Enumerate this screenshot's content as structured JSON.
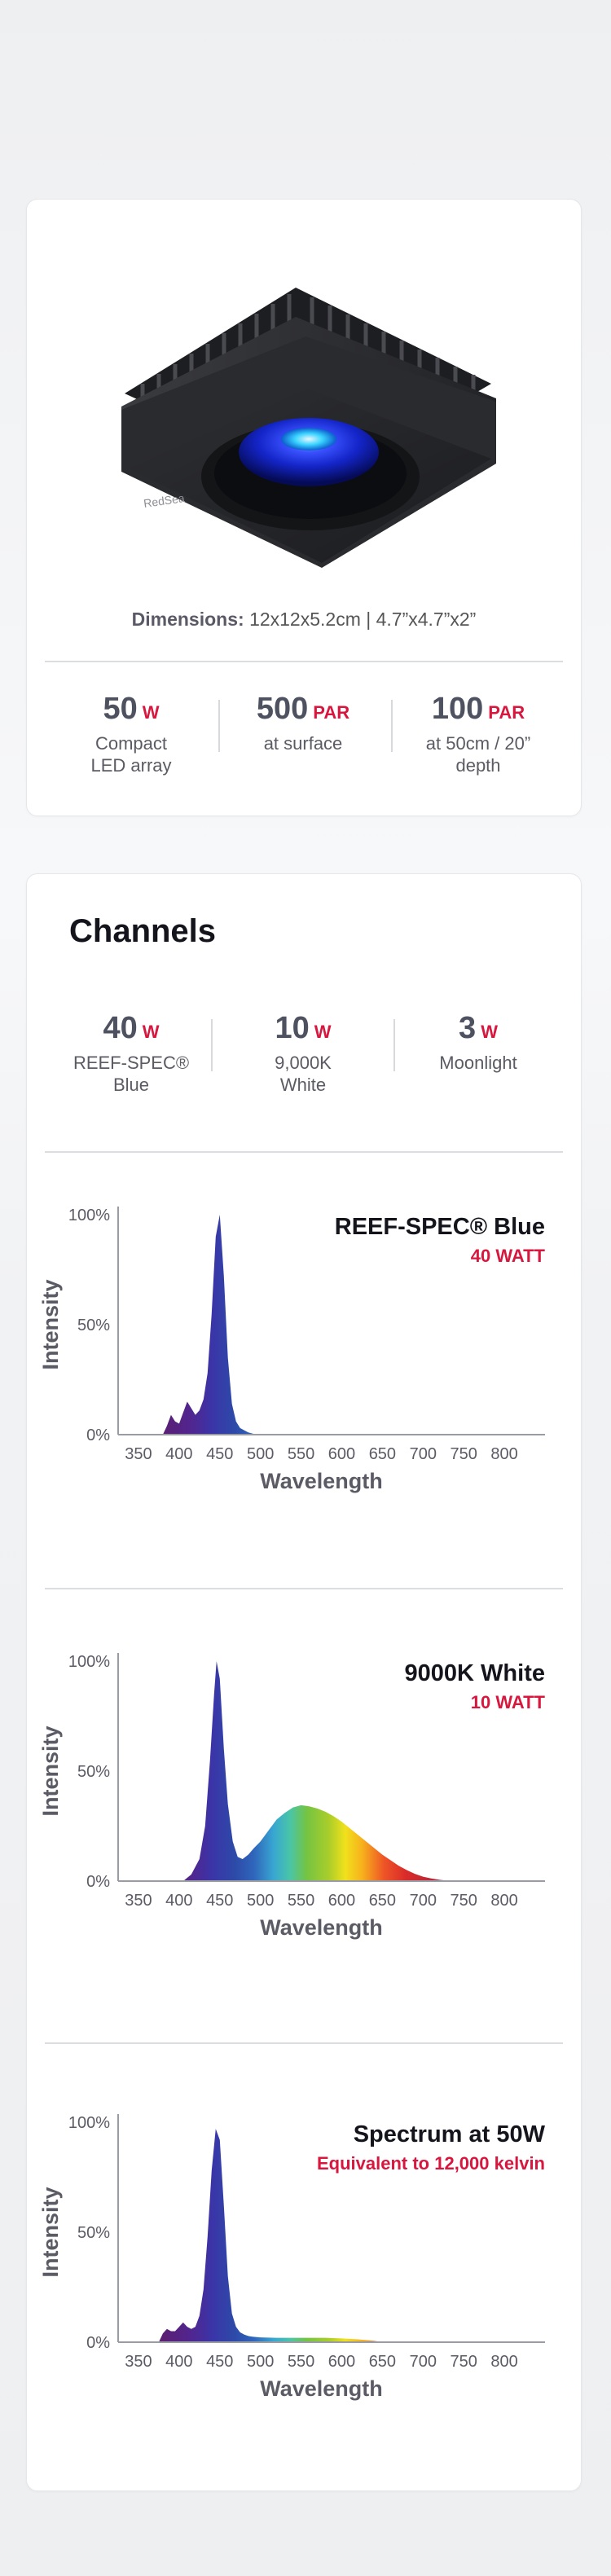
{
  "product": {
    "dimensions_label": "Dimensions:",
    "dimensions_value": "12x12x5.2cm |  4.7”x4.7”x2”",
    "logo_text": "RedSea",
    "stats": [
      {
        "value": "50",
        "unit": "W",
        "label_lines": [
          "Compact",
          "LED array"
        ]
      },
      {
        "value": "500",
        "unit": "PAR",
        "label_lines": [
          "at surface"
        ]
      },
      {
        "value": "100",
        "unit": "PAR",
        "label_lines": [
          "at 50cm / 20”",
          "depth"
        ]
      }
    ]
  },
  "channels": {
    "title": "Channels",
    "items": [
      {
        "value": "40",
        "unit": "W",
        "label_lines": [
          "REEF-SPEC®",
          "Blue"
        ]
      },
      {
        "value": "10",
        "unit": "W",
        "label_lines": [
          "9,000K",
          "White"
        ]
      },
      {
        "value": "3",
        "unit": "W",
        "label_lines": [
          "Moonlight"
        ]
      }
    ]
  },
  "colors": {
    "accent": "#d8173f",
    "title": "#14141c",
    "axis_text": "#5b5b66"
  },
  "chart_data": [
    {
      "type": "area",
      "title": "REEF-SPEC® Blue",
      "subtitle": "40 WATT",
      "xlabel": "Wavelength",
      "ylabel": "Intensity",
      "x_ticks": [
        350,
        400,
        450,
        500,
        550,
        600,
        650,
        700,
        750,
        800
      ],
      "y_ticks": [
        "0%",
        "50%",
        "100%"
      ],
      "xlim": [
        325,
        850
      ],
      "ylim": [
        0,
        100
      ],
      "gradient": "visible-spectrum",
      "x": [
        380,
        385,
        390,
        395,
        400,
        405,
        410,
        415,
        420,
        425,
        430,
        435,
        440,
        445,
        450,
        455,
        460,
        465,
        470,
        475,
        480,
        485,
        490,
        495
      ],
      "y": [
        0,
        4,
        9,
        6,
        5,
        10,
        15,
        12,
        9,
        11,
        16,
        28,
        55,
        90,
        100,
        72,
        35,
        14,
        6,
        3,
        2,
        1,
        0.5,
        0
      ]
    },
    {
      "type": "area",
      "title": "9000K White",
      "subtitle": "10 WATT",
      "xlabel": "Wavelength",
      "ylabel": "Intensity",
      "x_ticks": [
        350,
        400,
        450,
        500,
        550,
        600,
        650,
        700,
        750,
        800
      ],
      "y_ticks": [
        "0%",
        "50%",
        "100%"
      ],
      "xlim": [
        325,
        850
      ],
      "ylim": [
        0,
        100
      ],
      "gradient": "visible-spectrum",
      "x": [
        405,
        415,
        425,
        432,
        438,
        443,
        446,
        450,
        455,
        460,
        466,
        472,
        478,
        485,
        492,
        500,
        510,
        520,
        530,
        540,
        550,
        560,
        570,
        580,
        590,
        600,
        610,
        620,
        630,
        640,
        650,
        660,
        670,
        680,
        690,
        700,
        710,
        720,
        730,
        740
      ],
      "y": [
        0,
        3,
        10,
        25,
        55,
        85,
        100,
        92,
        60,
        35,
        18,
        11,
        10,
        12,
        15,
        18,
        23,
        28,
        31,
        33.5,
        34.5,
        34,
        33,
        31.5,
        29.5,
        27,
        24,
        21,
        18,
        15,
        12,
        9.5,
        7,
        5,
        3.3,
        2,
        1.2,
        0.6,
        0.2,
        0
      ]
    },
    {
      "type": "area",
      "title": "Spectrum at 50W",
      "subtitle": "Equivalent to 12,000 kelvin",
      "xlabel": "Wavelength",
      "ylabel": "Intensity",
      "x_ticks": [
        350,
        400,
        450,
        500,
        550,
        600,
        650,
        700,
        750,
        800
      ],
      "y_ticks": [
        "0%",
        "50%",
        "100%"
      ],
      "xlim": [
        325,
        850
      ],
      "ylim": [
        0,
        100
      ],
      "gradient": "visible-spectrum",
      "x": [
        375,
        380,
        385,
        390,
        395,
        400,
        405,
        410,
        415,
        420,
        425,
        430,
        435,
        440,
        445,
        450,
        455,
        460,
        465,
        470,
        475,
        480,
        485,
        490,
        500,
        520,
        540,
        560,
        580,
        600,
        620,
        640,
        650
      ],
      "y": [
        0,
        4,
        6,
        5,
        5,
        7,
        9,
        7,
        6,
        7,
        12,
        24,
        48,
        78,
        97,
        92,
        62,
        30,
        13,
        7,
        4.5,
        3.5,
        2.8,
        2.5,
        2.2,
        2,
        2,
        2,
        2,
        1.7,
        1.3,
        0.6,
        0
      ]
    }
  ]
}
